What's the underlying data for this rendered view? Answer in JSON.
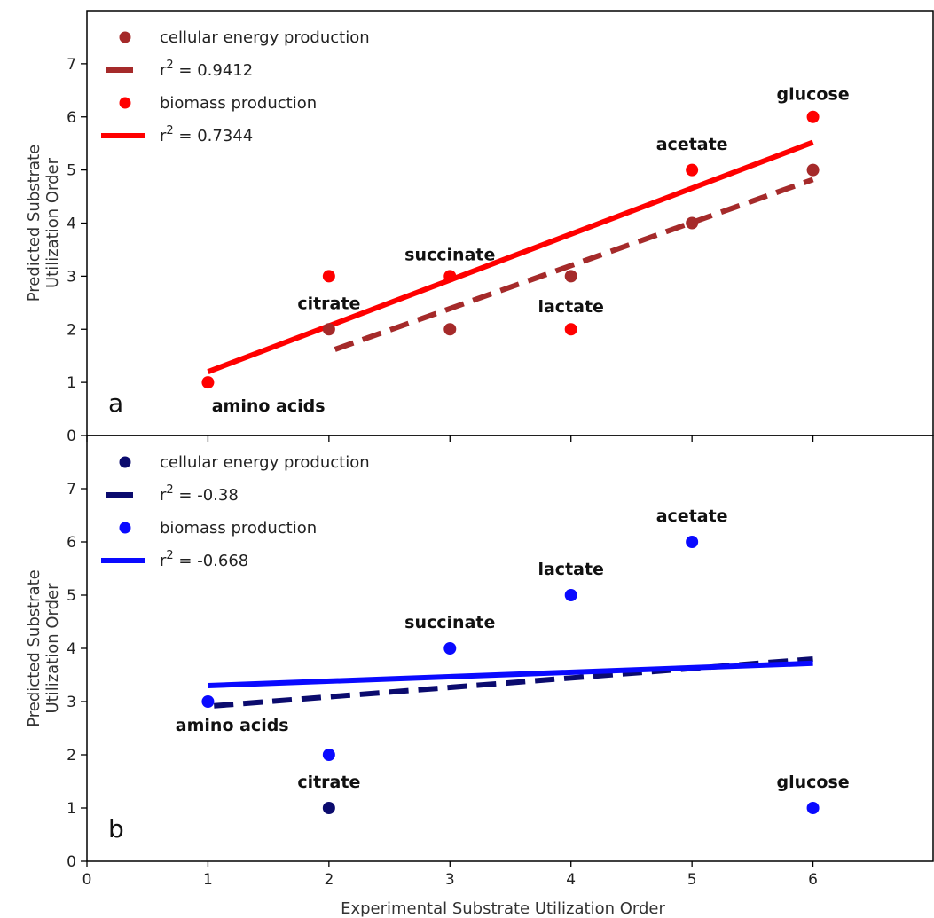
{
  "chart_data": [
    {
      "type": "scatter",
      "panel_label": "a",
      "xlim": [
        0,
        7
      ],
      "ylim": [
        0,
        8
      ],
      "xticks": [
        0,
        1,
        2,
        3,
        4,
        5,
        6
      ],
      "yticks": [
        0,
        1,
        2,
        3,
        4,
        5,
        6,
        7
      ],
      "ylabel_lines": [
        "Predicted Substrate",
        "Utilization Order"
      ],
      "series": [
        {
          "name": "cellular energy production",
          "color": "#a52a2a",
          "points": [
            [
              2,
              2
            ],
            [
              3,
              2
            ],
            [
              4,
              3
            ],
            [
              5,
              4
            ],
            [
              6,
              5
            ]
          ]
        },
        {
          "name": "biomass production",
          "color": "#ff0000",
          "points": [
            [
              1,
              1
            ],
            [
              2,
              3
            ],
            [
              3,
              3
            ],
            [
              4,
              2
            ],
            [
              5,
              5
            ],
            [
              6,
              6
            ]
          ]
        }
      ],
      "fits": [
        {
          "label_prefix": "r",
          "label_sup": "2",
          "label_suffix": " = 0.9412",
          "color": "#a52a2a",
          "style": "dashed",
          "x": [
            2.05,
            6
          ],
          "y": [
            1.62,
            4.82
          ]
        },
        {
          "label_prefix": "r",
          "label_sup": "2",
          "label_suffix": " = 0.7344",
          "color": "#ff0000",
          "style": "solid",
          "x": [
            1,
            6
          ],
          "y": [
            1.2,
            5.52
          ]
        }
      ],
      "legend_placement": "top-left",
      "annotations": [
        {
          "text": "amino acids",
          "x": 1.5,
          "y": 0.45
        },
        {
          "text": "citrate",
          "x": 2.0,
          "y": 2.38
        },
        {
          "text": "succinate",
          "x": 3.0,
          "y": 3.3
        },
        {
          "text": "lactate",
          "x": 4.0,
          "y": 2.32
        },
        {
          "text": "acetate",
          "x": 5.0,
          "y": 5.38
        },
        {
          "text": "glucose",
          "x": 6.0,
          "y": 6.32
        }
      ]
    },
    {
      "type": "scatter",
      "panel_label": "b",
      "xlim": [
        0,
        7
      ],
      "ylim": [
        0,
        8
      ],
      "xticks": [
        0,
        1,
        2,
        3,
        4,
        5,
        6
      ],
      "yticks": [
        0,
        1,
        2,
        3,
        4,
        5,
        6,
        7
      ],
      "ylabel_lines": [
        "Predicted Substrate",
        "Utilization Order"
      ],
      "xlabel": "Experimental Substrate Utilization Order",
      "series": [
        {
          "name": "cellular energy production",
          "color": "#0b0b6e",
          "points": [
            [
              2,
              1
            ]
          ]
        },
        {
          "name": "biomass production",
          "color": "#0a0aff",
          "points": [
            [
              1,
              3
            ],
            [
              2,
              2
            ],
            [
              3,
              4
            ],
            [
              4,
              5
            ],
            [
              5,
              6
            ],
            [
              6,
              1
            ]
          ]
        }
      ],
      "fits": [
        {
          "label_prefix": "r",
          "label_sup": "2",
          "label_suffix": " = -0.38",
          "color": "#0b0b6e",
          "style": "dashed",
          "x": [
            1.05,
            6
          ],
          "y": [
            2.92,
            3.8
          ]
        },
        {
          "label_prefix": "r",
          "label_sup": "2",
          "label_suffix": " = -0.668",
          "color": "#0a0aff",
          "style": "solid",
          "x": [
            1,
            6
          ],
          "y": [
            3.3,
            3.72
          ]
        }
      ],
      "legend_placement": "top-left",
      "annotations": [
        {
          "text": "amino acids",
          "x": 1.2,
          "y": 2.45
        },
        {
          "text": "citrate",
          "x": 2.0,
          "y": 1.38
        },
        {
          "text": "succinate",
          "x": 3.0,
          "y": 4.38
        },
        {
          "text": "lactate",
          "x": 4.0,
          "y": 5.38
        },
        {
          "text": "acetate",
          "x": 5.0,
          "y": 6.38
        },
        {
          "text": "glucose",
          "x": 6.0,
          "y": 1.38
        }
      ]
    }
  ]
}
